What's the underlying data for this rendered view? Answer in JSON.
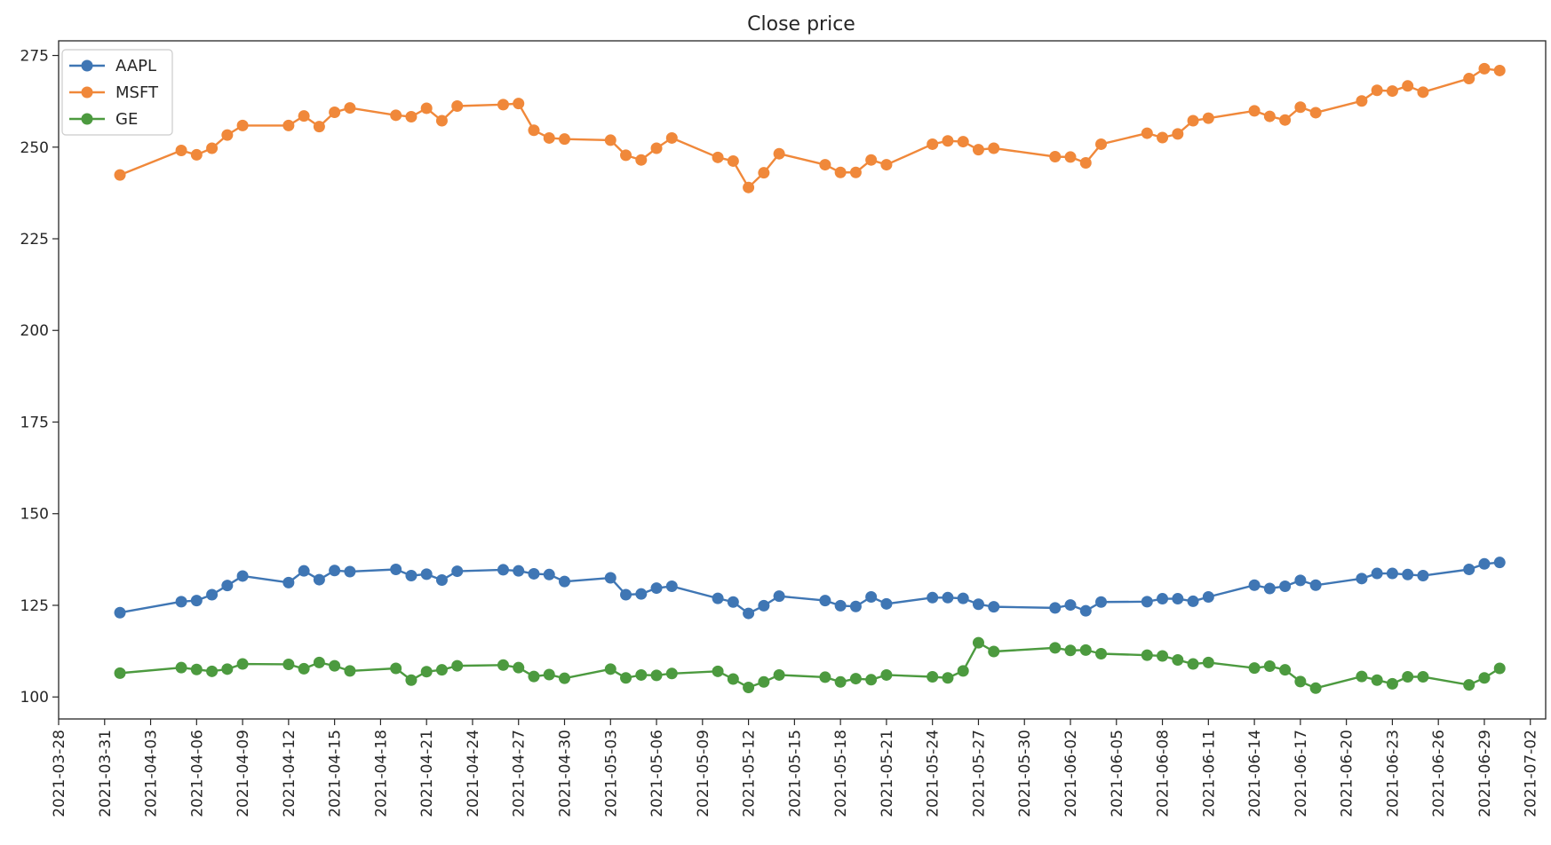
{
  "chart_data": {
    "type": "line",
    "title": "Close price",
    "xlabel": "",
    "ylabel": "",
    "x_axis": {
      "kind": "date",
      "range": [
        "2021-03-28",
        "2021-07-03"
      ],
      "tick_labels": [
        "2021-03-28",
        "2021-03-31",
        "2021-04-03",
        "2021-04-06",
        "2021-04-09",
        "2021-04-12",
        "2021-04-15",
        "2021-04-18",
        "2021-04-21",
        "2021-04-24",
        "2021-04-27",
        "2021-04-30",
        "2021-05-03",
        "2021-05-06",
        "2021-05-09",
        "2021-05-12",
        "2021-05-15",
        "2021-05-18",
        "2021-05-21",
        "2021-05-24",
        "2021-05-27",
        "2021-05-30",
        "2021-06-02",
        "2021-06-05",
        "2021-06-08",
        "2021-06-11",
        "2021-06-14",
        "2021-06-17",
        "2021-06-20",
        "2021-06-23",
        "2021-06-26",
        "2021-06-29",
        "2021-07-02"
      ]
    },
    "y_axis": {
      "range": [
        94,
        279
      ],
      "tick_labels": [
        "100",
        "125",
        "150",
        "175",
        "200",
        "225",
        "250",
        "275"
      ],
      "tick_values": [
        100,
        125,
        150,
        175,
        200,
        225,
        250,
        275
      ]
    },
    "grid": false,
    "legend_position": "top-left",
    "x": [
      "2021-04-01",
      "2021-04-05",
      "2021-04-06",
      "2021-04-07",
      "2021-04-08",
      "2021-04-09",
      "2021-04-12",
      "2021-04-13",
      "2021-04-14",
      "2021-04-15",
      "2021-04-16",
      "2021-04-19",
      "2021-04-20",
      "2021-04-21",
      "2021-04-22",
      "2021-04-23",
      "2021-04-26",
      "2021-04-27",
      "2021-04-28",
      "2021-04-29",
      "2021-04-30",
      "2021-05-03",
      "2021-05-04",
      "2021-05-05",
      "2021-05-06",
      "2021-05-07",
      "2021-05-10",
      "2021-05-11",
      "2021-05-12",
      "2021-05-13",
      "2021-05-14",
      "2021-05-17",
      "2021-05-18",
      "2021-05-19",
      "2021-05-20",
      "2021-05-21",
      "2021-05-24",
      "2021-05-25",
      "2021-05-26",
      "2021-05-27",
      "2021-05-28",
      "2021-06-01",
      "2021-06-02",
      "2021-06-03",
      "2021-06-04",
      "2021-06-07",
      "2021-06-08",
      "2021-06-09",
      "2021-06-10",
      "2021-06-11",
      "2021-06-14",
      "2021-06-15",
      "2021-06-16",
      "2021-06-17",
      "2021-06-18",
      "2021-06-21",
      "2021-06-22",
      "2021-06-23",
      "2021-06-24",
      "2021-06-25",
      "2021-06-28",
      "2021-06-29",
      "2021-06-30"
    ],
    "series": [
      {
        "name": "AAPL",
        "color": "#3f76b4",
        "marker": "circle",
        "values": [
          123.0,
          126.0,
          126.3,
          127.9,
          130.4,
          133.0,
          131.2,
          134.4,
          132.0,
          134.5,
          134.2,
          134.8,
          133.1,
          133.5,
          131.9,
          134.3,
          134.7,
          134.4,
          133.6,
          133.4,
          131.5,
          132.5,
          127.9,
          128.1,
          129.7,
          130.2,
          126.9,
          125.9,
          122.8,
          124.9,
          127.5,
          126.3,
          124.9,
          124.7,
          127.3,
          125.4,
          127.1,
          127.1,
          126.9,
          125.3,
          124.6,
          124.3,
          125.1,
          123.5,
          125.9,
          126.0,
          126.8,
          126.8,
          126.1,
          127.3,
          130.5,
          129.6,
          130.2,
          131.8,
          130.5,
          132.3,
          133.7,
          133.7,
          133.4,
          133.1,
          134.8,
          136.3,
          136.7
        ]
      },
      {
        "name": "MSFT",
        "color": "#f0883a",
        "marker": "circle",
        "values": [
          242.4,
          249.1,
          247.9,
          249.7,
          253.3,
          255.9,
          255.9,
          258.5,
          255.6,
          259.5,
          260.7,
          258.7,
          258.3,
          260.6,
          257.2,
          261.2,
          261.6,
          261.9,
          254.6,
          252.5,
          252.2,
          251.9,
          247.8,
          246.5,
          249.7,
          252.5,
          247.2,
          246.2,
          239.0,
          243.0,
          248.2,
          245.2,
          243.1,
          243.1,
          246.5,
          245.2,
          250.8,
          251.7,
          251.5,
          249.3,
          249.7,
          247.4,
          247.3,
          245.7,
          250.8,
          253.8,
          252.6,
          253.6,
          257.2,
          257.9,
          259.9,
          258.4,
          257.4,
          260.9,
          259.4,
          262.6,
          265.5,
          265.3,
          266.7,
          265.0,
          268.7,
          271.4,
          270.9
        ]
      },
      {
        "name": "GE",
        "color": "#4c9a3f",
        "marker": "circle",
        "values": [
          106.5,
          108.0,
          107.5,
          107.0,
          107.6,
          109.0,
          108.9,
          107.7,
          109.4,
          108.5,
          107.1,
          107.8,
          104.6,
          106.9,
          107.4,
          108.5,
          108.7,
          108.0,
          105.6,
          106.1,
          105.1,
          107.6,
          105.2,
          106.0,
          105.9,
          106.4,
          107.0,
          104.9,
          102.6,
          104.1,
          106.0,
          105.4,
          104.1,
          105.0,
          104.7,
          106.0,
          105.5,
          105.2,
          107.1,
          114.8,
          112.4,
          113.4,
          112.7,
          112.8,
          111.8,
          111.4,
          111.2,
          110.1,
          109.0,
          109.4,
          107.9,
          108.4,
          107.4,
          104.2,
          102.4,
          105.6,
          104.6,
          103.6,
          105.5,
          105.5,
          103.3,
          105.2,
          107.8
        ]
      }
    ]
  }
}
